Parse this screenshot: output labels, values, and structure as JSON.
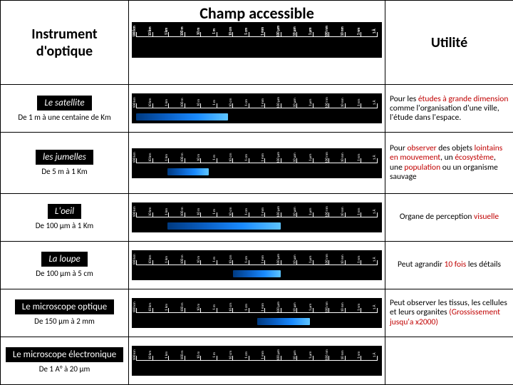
{
  "headers": {
    "instrument": "Instrument d'optique",
    "champ": "Champ  accessible",
    "utilite": "Utilité"
  },
  "scale_labels": [
    "100 km",
    "10 km",
    "1 km",
    "100 m",
    "10 m",
    "1 m",
    "10 cm",
    "1 cm",
    "1 mm",
    "100 μm",
    "10 μm",
    "1 μm",
    "100 nm",
    "10 nm",
    "1 nm",
    "1 Å"
  ],
  "band_gradient": [
    "#003a80",
    "#0a5fc4",
    "#1a8bff",
    "#5ec4ff"
  ],
  "rows": [
    {
      "name": "Le satellite",
      "italic": true,
      "range": "De 1 m à une centaine de Km",
      "band": {
        "left_pct": 0,
        "right_pct": 62
      },
      "util": [
        {
          "t": "Pour les "
        },
        {
          "t": "études à grande dimension",
          "red": true
        },
        {
          "t": " comme l'organisation d'une ville, l'étude dans l'espace."
        }
      ],
      "util_align": "left"
    },
    {
      "name": "les jumelles",
      "italic": true,
      "range": "De 5 m à 1 Km",
      "band": {
        "left_pct": 13,
        "right_pct": 70
      },
      "util": [
        {
          "t": "Pour "
        },
        {
          "t": "observer",
          "red": true
        },
        {
          "t": " des objets "
        },
        {
          "t": "lointains en mouvement",
          "red": true
        },
        {
          "t": ", un "
        },
        {
          "t": "écosystème",
          "red": true
        },
        {
          "t": ", une "
        },
        {
          "t": "population",
          "red": true
        },
        {
          "t": " ou un organisme sauvage"
        }
      ],
      "util_align": "left"
    },
    {
      "name": "L'oeil",
      "italic": true,
      "range": "De 100 μm à 1 Km",
      "band": {
        "left_pct": 13,
        "right_pct": 40
      },
      "util": [
        {
          "t": "Organe de perception "
        },
        {
          "t": "visuelle",
          "red": true
        }
      ],
      "util_align": "center"
    },
    {
      "name": "La loupe",
      "italic": true,
      "range": "De 100 μm à 5 cm",
      "band": {
        "left_pct": 40,
        "right_pct": 40
      },
      "util": [
        {
          "t": "Peut agrandir "
        },
        {
          "t": "10 fois",
          "red": true
        },
        {
          "t": " les détails"
        }
      ],
      "util_align": "center"
    },
    {
      "name": "Le microscope optique",
      "italic": false,
      "range": "De 150 μm à 2 mm",
      "band": {
        "left_pct": 50,
        "right_pct": 28
      },
      "util": [
        {
          "t": "Peut observer les tissus, les cellules et leurs organites "
        },
        {
          "t": "(Grossissement jusqu'a x2000)",
          "red": true
        }
      ],
      "util_align": "left"
    },
    {
      "name": "Le microscope électronique",
      "italic": false,
      "range": "De 1 A° à 20 μm",
      "band": null,
      "util": [],
      "util_align": "left"
    }
  ],
  "style": {
    "bg": "#ffffff",
    "border": "#000000",
    "header_fontsize": 20,
    "champ_fontsize": 22,
    "body_fontsize": 11.5,
    "instr_box_bg": "#000000",
    "instr_box_fg": "#ffffff",
    "red": "#c00000",
    "ruler_bg": "#000000",
    "tick_color": "#ffffff"
  }
}
